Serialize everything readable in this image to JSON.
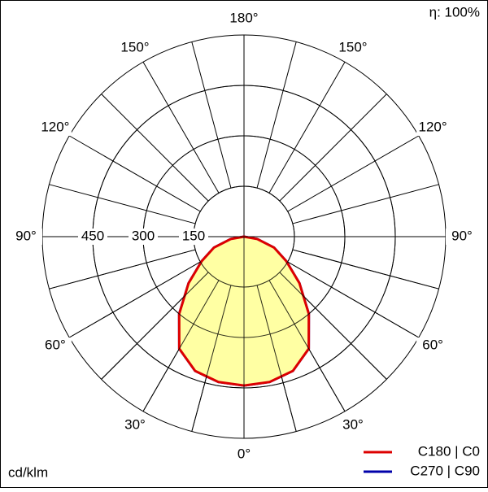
{
  "chart_data": {
    "type": "polar",
    "unit_label": "cd/klm",
    "efficiency_label": "η: 100%",
    "angles": [
      -90,
      -80,
      -70,
      -60,
      -50,
      -40,
      -30,
      -20,
      -10,
      0,
      10,
      20,
      30,
      40,
      50,
      60,
      70,
      80,
      90
    ],
    "series": [
      {
        "name": "C270 | C90",
        "color": "#0000aa",
        "values": [
          0,
          40,
          95,
          145,
          215,
          300,
          385,
          425,
          439,
          443,
          439,
          425,
          385,
          300,
          215,
          145,
          95,
          40,
          0
        ]
      },
      {
        "name": "C180 | C0",
        "color": "#dd0000",
        "values": [
          0,
          40,
          95,
          145,
          215,
          300,
          385,
          425,
          439,
          443,
          439,
          425,
          385,
          300,
          215,
          145,
          95,
          40,
          0
        ]
      }
    ],
    "fill": "#ffff99",
    "rlim": [
      0,
      600
    ],
    "rticks": [
      150,
      300,
      450
    ],
    "angle_ticks": [
      {
        "value": 0,
        "label": "0°"
      },
      {
        "value": 30,
        "label": "30°"
      },
      {
        "value": 60,
        "label": "60°"
      },
      {
        "value": 90,
        "label": "90°"
      },
      {
        "value": 120,
        "label": "120°"
      },
      {
        "value": 150,
        "label": "150°"
      },
      {
        "value": 180,
        "label": "180°"
      }
    ],
    "grid": true
  }
}
